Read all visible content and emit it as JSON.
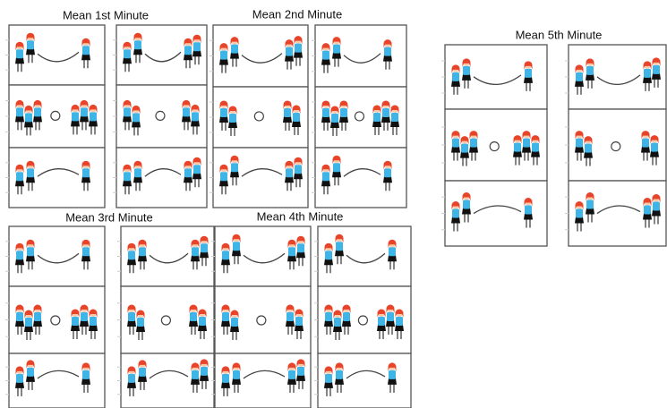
{
  "titles": [
    "Mean 1st Minute",
    "Mean 2nd Minute",
    "Mean 3rd Minute",
    "Mean 4th Minute",
    "Mean 5th Minute"
  ]
}
